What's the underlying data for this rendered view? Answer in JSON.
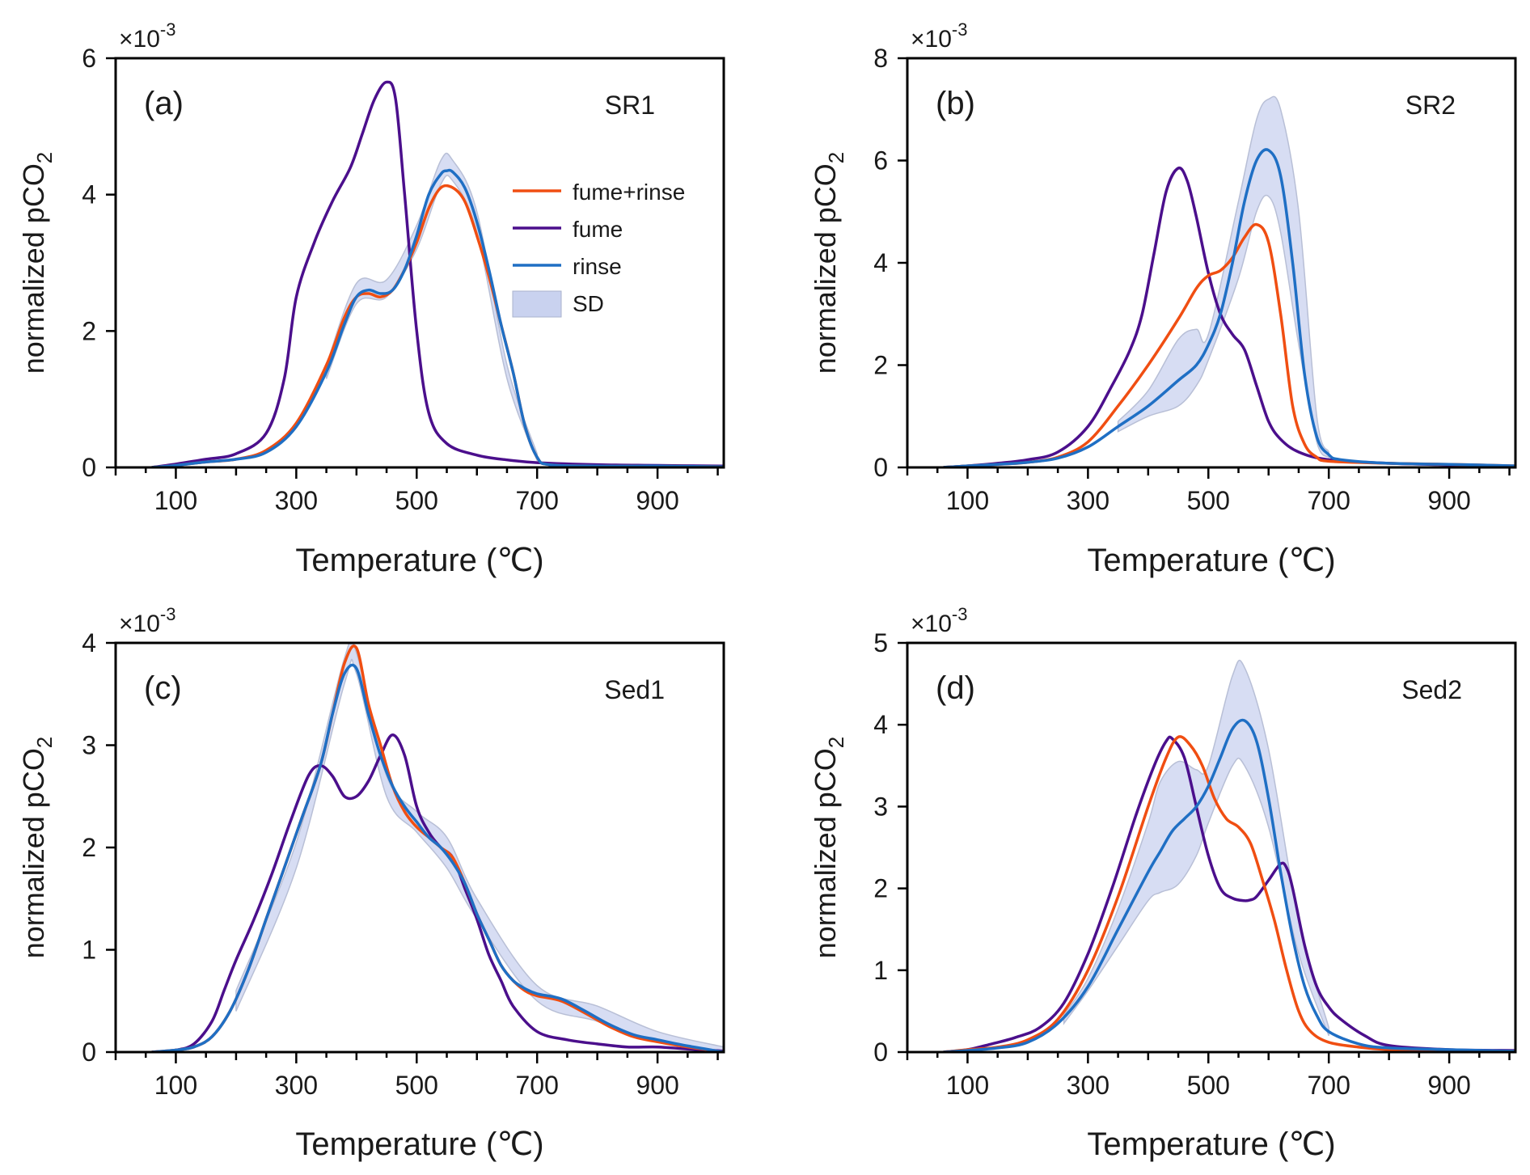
{
  "figure": {
    "xlabel": "Temperature (℃)",
    "ylabel_main": "normalized pCO",
    "ylabel_sub": "2",
    "exponent_prefix": "×10",
    "exponent_power": "-3",
    "colors": {
      "fume+rinse": "#f04e12",
      "fume": "#4b0f8c",
      "rinse": "#1f6fc4",
      "SD": "#c9d2ef"
    },
    "legend": {
      "placement": "inside-right of panel (a)",
      "entries": [
        {
          "key": "fume+rinse",
          "label": "fume+rinse",
          "kind": "line"
        },
        {
          "key": "fume",
          "label": "fume",
          "kind": "line"
        },
        {
          "key": "rinse",
          "label": "rinse",
          "kind": "line"
        },
        {
          "key": "SD",
          "label": "SD",
          "kind": "patch"
        }
      ]
    }
  },
  "chart_data": [
    {
      "type": "line",
      "panel": "(a)",
      "sample": "SR1",
      "xlim": [
        0,
        1010
      ],
      "ylim": [
        0,
        6
      ],
      "xticks": [
        100,
        300,
        500,
        700,
        900
      ],
      "yticks": [
        0,
        2,
        4,
        6
      ],
      "series": [
        {
          "key": "fume",
          "x": [
            60,
            100,
            150,
            200,
            250,
            280,
            300,
            330,
            360,
            390,
            410,
            430,
            450,
            465,
            480,
            500,
            520,
            550,
            600,
            650,
            700,
            800,
            900,
            1010
          ],
          "y": [
            0,
            0.05,
            0.12,
            0.2,
            0.5,
            1.3,
            2.5,
            3.3,
            3.9,
            4.4,
            4.9,
            5.4,
            5.65,
            5.4,
            4.0,
            2.0,
            0.8,
            0.35,
            0.18,
            0.11,
            0.07,
            0.04,
            0.03,
            0.02
          ]
        },
        {
          "key": "fume+rinse",
          "x": [
            60,
            100,
            150,
            200,
            250,
            300,
            350,
            380,
            400,
            420,
            440,
            460,
            480,
            500,
            520,
            540,
            560,
            580,
            600,
            620,
            640,
            660,
            680,
            700,
            720,
            800,
            900,
            1010
          ],
          "y": [
            0,
            0.03,
            0.08,
            0.12,
            0.25,
            0.65,
            1.5,
            2.2,
            2.5,
            2.55,
            2.5,
            2.6,
            2.9,
            3.3,
            3.8,
            4.1,
            4.1,
            3.9,
            3.4,
            2.8,
            2.1,
            1.4,
            0.6,
            0.15,
            0.04,
            0.02,
            0.02,
            0.01
          ]
        },
        {
          "key": "rinse",
          "x": [
            60,
            100,
            150,
            200,
            250,
            300,
            350,
            380,
            400,
            420,
            440,
            460,
            480,
            500,
            520,
            540,
            550,
            560,
            580,
            600,
            620,
            640,
            660,
            680,
            700,
            720,
            800,
            900,
            1010
          ],
          "y": [
            0,
            0.03,
            0.08,
            0.12,
            0.22,
            0.6,
            1.4,
            2.1,
            2.5,
            2.6,
            2.55,
            2.6,
            2.9,
            3.4,
            4.0,
            4.3,
            4.35,
            4.33,
            4.1,
            3.6,
            2.9,
            2.1,
            1.4,
            0.6,
            0.15,
            0.04,
            0.02,
            0.02,
            0.01
          ]
        }
      ],
      "sd": {
        "x": [
          350,
          400,
          450,
          500,
          540,
          560,
          600,
          650,
          700
        ],
        "lower": [
          1.3,
          2.4,
          2.5,
          3.2,
          4.15,
          4.2,
          3.45,
          1.3,
          0.1
        ],
        "upper": [
          1.5,
          2.7,
          2.75,
          3.55,
          4.5,
          4.5,
          3.75,
          1.5,
          0.2
        ]
      }
    },
    {
      "type": "line",
      "panel": "(b)",
      "sample": "SR2",
      "xlim": [
        0,
        1010
      ],
      "ylim": [
        0,
        8
      ],
      "xticks": [
        100,
        300,
        500,
        700,
        900
      ],
      "yticks": [
        0,
        2,
        4,
        6,
        8
      ],
      "series": [
        {
          "key": "fume",
          "x": [
            60,
            100,
            150,
            200,
            250,
            300,
            340,
            370,
            390,
            410,
            430,
            450,
            465,
            480,
            500,
            520,
            540,
            560,
            580,
            600,
            620,
            650,
            700,
            800,
            900,
            1010
          ],
          "y": [
            0,
            0.03,
            0.08,
            0.15,
            0.3,
            0.8,
            1.6,
            2.3,
            3.0,
            4.2,
            5.4,
            5.85,
            5.6,
            4.9,
            3.8,
            3.0,
            2.6,
            2.3,
            1.6,
            0.9,
            0.55,
            0.3,
            0.15,
            0.08,
            0.05,
            0.02
          ]
        },
        {
          "key": "fume+rinse",
          "x": [
            60,
            100,
            150,
            200,
            250,
            300,
            350,
            400,
            450,
            480,
            500,
            520,
            540,
            560,
            580,
            600,
            620,
            640,
            660,
            680,
            700,
            800,
            900,
            1010
          ],
          "y": [
            0,
            0.03,
            0.06,
            0.1,
            0.2,
            0.5,
            1.2,
            2.0,
            2.9,
            3.5,
            3.75,
            3.85,
            4.1,
            4.5,
            4.75,
            4.4,
            3.0,
            1.2,
            0.45,
            0.2,
            0.12,
            0.08,
            0.06,
            0.03
          ]
        },
        {
          "key": "rinse",
          "x": [
            60,
            100,
            150,
            200,
            250,
            300,
            350,
            400,
            450,
            480,
            500,
            520,
            540,
            560,
            580,
            600,
            620,
            640,
            660,
            680,
            700,
            720,
            800,
            900,
            1010
          ],
          "y": [
            0,
            0.03,
            0.06,
            0.1,
            0.18,
            0.4,
            0.8,
            1.2,
            1.7,
            2.0,
            2.4,
            3.0,
            4.0,
            5.2,
            6.0,
            6.2,
            5.7,
            4.0,
            1.8,
            0.6,
            0.25,
            0.15,
            0.08,
            0.06,
            0.03
          ]
        }
      ],
      "sd": {
        "x": [
          350,
          400,
          450,
          480,
          500,
          550,
          580,
          600,
          620,
          650,
          680,
          700
        ],
        "lower": [
          0.7,
          1.0,
          1.2,
          1.6,
          2.1,
          3.7,
          5.0,
          5.3,
          4.6,
          2.4,
          0.5,
          0.2
        ],
        "upper": [
          0.9,
          1.5,
          2.5,
          2.7,
          2.6,
          5.2,
          6.8,
          7.2,
          7.0,
          5.0,
          1.0,
          0.3
        ]
      }
    },
    {
      "type": "line",
      "panel": "(c)",
      "sample": "Sed1",
      "xlim": [
        0,
        1010
      ],
      "ylim": [
        0,
        4
      ],
      "xticks": [
        100,
        300,
        500,
        700,
        900
      ],
      "yticks": [
        0,
        1,
        2,
        3,
        4
      ],
      "series": [
        {
          "key": "fume",
          "x": [
            60,
            100,
            130,
            160,
            180,
            200,
            230,
            260,
            290,
            320,
            340,
            360,
            380,
            400,
            420,
            440,
            460,
            480,
            500,
            520,
            540,
            560,
            580,
            600,
            620,
            640,
            660,
            700,
            750,
            800,
            850,
            900,
            950,
            1010
          ],
          "y": [
            0,
            0.02,
            0.08,
            0.3,
            0.6,
            0.9,
            1.3,
            1.75,
            2.25,
            2.7,
            2.8,
            2.7,
            2.5,
            2.5,
            2.65,
            2.9,
            3.1,
            2.9,
            2.4,
            2.15,
            2.0,
            1.9,
            1.6,
            1.3,
            0.95,
            0.7,
            0.45,
            0.2,
            0.12,
            0.08,
            0.05,
            0.05,
            0.03,
            0.01
          ]
        },
        {
          "key": "fume+rinse",
          "x": [
            60,
            100,
            130,
            160,
            190,
            220,
            250,
            280,
            310,
            340,
            360,
            380,
            400,
            420,
            440,
            460,
            480,
            500,
            520,
            540,
            560,
            580,
            600,
            620,
            640,
            660,
            680,
            700,
            740,
            780,
            820,
            860,
            900,
            950,
            1010
          ],
          "y": [
            0,
            0.02,
            0.05,
            0.15,
            0.4,
            0.8,
            1.3,
            1.8,
            2.3,
            2.8,
            3.3,
            3.8,
            3.95,
            3.4,
            3.0,
            2.6,
            2.35,
            2.2,
            2.1,
            2.0,
            1.9,
            1.65,
            1.35,
            1.1,
            0.85,
            0.7,
            0.6,
            0.55,
            0.5,
            0.38,
            0.25,
            0.15,
            0.1,
            0.05,
            0.0
          ]
        },
        {
          "key": "rinse",
          "x": [
            60,
            100,
            130,
            160,
            190,
            220,
            250,
            280,
            310,
            340,
            360,
            380,
            400,
            420,
            440,
            460,
            480,
            500,
            520,
            540,
            560,
            580,
            600,
            620,
            640,
            660,
            680,
            700,
            740,
            780,
            820,
            860,
            900,
            950,
            1010
          ],
          "y": [
            0,
            0.02,
            0.05,
            0.15,
            0.4,
            0.8,
            1.3,
            1.8,
            2.3,
            2.8,
            3.3,
            3.7,
            3.75,
            3.3,
            2.9,
            2.6,
            2.4,
            2.25,
            2.1,
            2.0,
            1.85,
            1.65,
            1.35,
            1.1,
            0.85,
            0.7,
            0.62,
            0.57,
            0.52,
            0.4,
            0.27,
            0.17,
            0.12,
            0.06,
            0.0
          ]
        }
      ],
      "sd": {
        "x": [
          200,
          300,
          380,
          400,
          450,
          500,
          550,
          600,
          700,
          800,
          900,
          1010
        ],
        "lower": [
          0.4,
          1.8,
          3.6,
          3.7,
          2.5,
          2.15,
          1.8,
          1.3,
          0.5,
          0.3,
          0.1,
          0.0
        ],
        "upper": [
          0.6,
          2.05,
          3.85,
          3.9,
          2.7,
          2.35,
          2.1,
          1.5,
          0.65,
          0.45,
          0.2,
          0.05
        ]
      }
    },
    {
      "type": "line",
      "panel": "(d)",
      "sample": "Sed2",
      "xlim": [
        0,
        1010
      ],
      "ylim": [
        0,
        5
      ],
      "xticks": [
        100,
        300,
        500,
        700,
        900
      ],
      "yticks": [
        0,
        1,
        2,
        3,
        4,
        5
      ],
      "series": [
        {
          "key": "fume",
          "x": [
            60,
            100,
            140,
            180,
            220,
            260,
            300,
            340,
            380,
            410,
            430,
            440,
            460,
            480,
            500,
            520,
            540,
            560,
            570,
            580,
            600,
            620,
            630,
            640,
            660,
            680,
            700,
            720,
            760,
            800,
            900,
            1010
          ],
          "y": [
            0,
            0.03,
            0.1,
            0.18,
            0.3,
            0.6,
            1.2,
            2.0,
            2.9,
            3.5,
            3.8,
            3.83,
            3.6,
            3.0,
            2.4,
            2.0,
            1.88,
            1.85,
            1.86,
            1.9,
            2.1,
            2.3,
            2.25,
            2.0,
            1.3,
            0.8,
            0.55,
            0.4,
            0.2,
            0.08,
            0.03,
            0.02
          ]
        },
        {
          "key": "fume+rinse",
          "x": [
            60,
            100,
            150,
            200,
            250,
            300,
            350,
            400,
            430,
            450,
            470,
            490,
            510,
            530,
            550,
            570,
            590,
            610,
            630,
            650,
            670,
            700,
            750,
            800,
            900,
            1010
          ],
          "y": [
            0,
            0.03,
            0.06,
            0.15,
            0.4,
            1.0,
            1.9,
            3.0,
            3.6,
            3.85,
            3.75,
            3.5,
            3.1,
            2.85,
            2.75,
            2.55,
            2.1,
            1.6,
            1.0,
            0.5,
            0.25,
            0.12,
            0.06,
            0.03,
            0.02,
            0.01
          ]
        },
        {
          "key": "rinse",
          "x": [
            60,
            100,
            150,
            200,
            250,
            300,
            350,
            400,
            420,
            440,
            460,
            480,
            500,
            520,
            540,
            560,
            580,
            600,
            620,
            640,
            660,
            680,
            700,
            750,
            800,
            900,
            1010
          ],
          "y": [
            0,
            0.02,
            0.05,
            0.12,
            0.35,
            0.8,
            1.5,
            2.2,
            2.45,
            2.7,
            2.85,
            3.0,
            3.25,
            3.6,
            3.95,
            4.05,
            3.8,
            3.1,
            2.2,
            1.4,
            0.8,
            0.45,
            0.25,
            0.1,
            0.05,
            0.03,
            0.01
          ]
        }
      ],
      "sd": {
        "x": [
          260,
          300,
          350,
          400,
          420,
          450,
          480,
          500,
          540,
          560,
          600,
          650,
          700
        ],
        "lower": [
          0.35,
          0.75,
          1.3,
          1.85,
          1.95,
          2.05,
          2.4,
          2.8,
          3.5,
          3.5,
          2.75,
          1.2,
          0.2
        ],
        "upper": [
          0.45,
          0.9,
          1.75,
          2.8,
          3.3,
          3.55,
          3.45,
          3.5,
          4.6,
          4.7,
          3.7,
          1.6,
          0.3
        ]
      }
    }
  ]
}
